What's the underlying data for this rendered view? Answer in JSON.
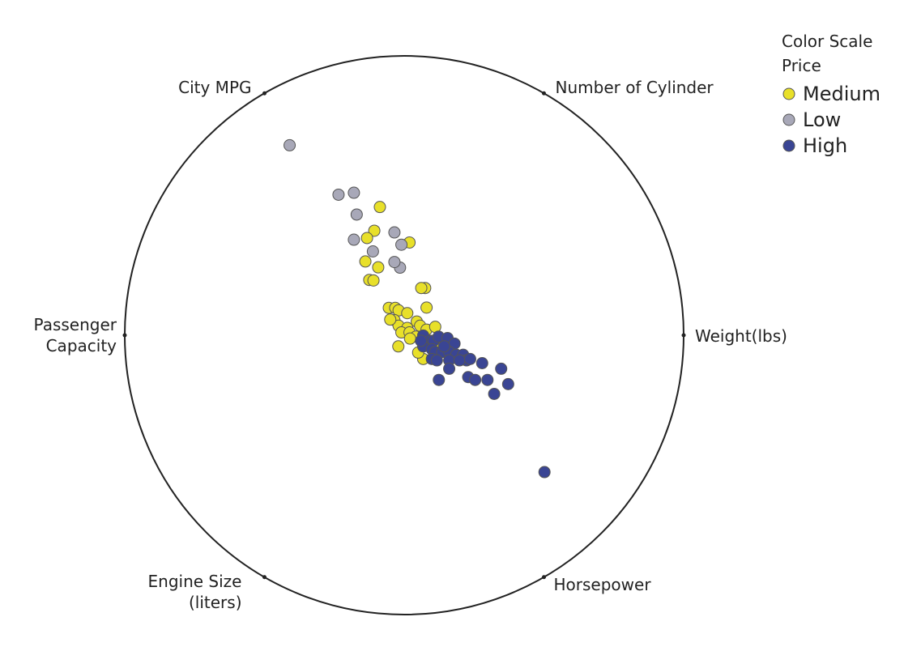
{
  "chart_data": {
    "type": "scatter",
    "subtype": "radviz",
    "title": "",
    "xlabel": "",
    "ylabel": "",
    "grid": false,
    "xlim": [
      -1,
      1
    ],
    "ylim": [
      -1,
      1
    ],
    "anchors": [
      {
        "name": "City MPG",
        "angle_deg": 120,
        "lines": [
          "City MPG"
        ]
      },
      {
        "name": "Number of Cylinder",
        "angle_deg": 60,
        "lines": [
          "Number of Cylinder"
        ]
      },
      {
        "name": "Weight(lbs)",
        "angle_deg": 0,
        "lines": [
          "Weight(lbs)"
        ]
      },
      {
        "name": "Horsepower",
        "angle_deg": -60,
        "lines": [
          "Horsepower"
        ]
      },
      {
        "name": "Engine Size (liters)",
        "angle_deg": -120,
        "lines": [
          "Engine Size",
          "(liters)"
        ]
      },
      {
        "name": "Passenger Capacity",
        "angle_deg": 180,
        "lines": [
          "Passenger",
          "Capacity"
        ]
      }
    ],
    "legend": {
      "title_lines": [
        "Color Scale",
        "Price"
      ],
      "position": "top-right",
      "entries": [
        {
          "label": "Medium",
          "color": "#e8e02a"
        },
        {
          "label": "Low",
          "color": "#a8a8b8"
        },
        {
          "label": "High",
          "color": "#3a4594"
        }
      ]
    },
    "series": [
      {
        "name": "Medium",
        "color": "#e8e02a",
        "points": [
          [
            -0.087,
            0.459
          ],
          [
            -0.107,
            0.374
          ],
          [
            0.019,
            0.332
          ],
          [
            -0.133,
            0.348
          ],
          [
            -0.139,
            0.264
          ],
          [
            -0.093,
            0.243
          ],
          [
            -0.125,
            0.198
          ],
          [
            -0.11,
            0.196
          ],
          [
            0.075,
            0.169
          ],
          [
            0.061,
            0.169
          ],
          [
            0.08,
            0.099
          ],
          [
            -0.055,
            0.098
          ],
          [
            -0.032,
            0.098
          ],
          [
            -0.02,
            0.089
          ],
          [
            0.011,
            0.079
          ],
          [
            -0.035,
            0.054
          ],
          [
            -0.02,
            0.034
          ],
          [
            0.011,
            0.026
          ],
          [
            0.045,
            0.049
          ],
          [
            -0.05,
            0.056
          ],
          [
            0.057,
            0.034
          ],
          [
            -0.01,
            0.01
          ],
          [
            0.019,
            0.01
          ],
          [
            0.068,
            -0.04
          ],
          [
            0.08,
            0.02
          ],
          [
            0.075,
            -0.02
          ],
          [
            0.042,
            -0.005
          ],
          [
            0.111,
            0.03
          ],
          [
            0.13,
            -0.03
          ],
          [
            -0.021,
            -0.04
          ],
          [
            0.068,
            -0.085
          ],
          [
            0.021,
            -0.012
          ],
          [
            0.05,
            -0.062
          ],
          [
            0.123,
            -0.033
          ]
        ]
      },
      {
        "name": "Low",
        "color": "#a8a8b8",
        "points": [
          [
            -0.41,
            0.68
          ],
          [
            -0.235,
            0.503
          ],
          [
            -0.18,
            0.51
          ],
          [
            -0.17,
            0.432
          ],
          [
            -0.18,
            0.342
          ],
          [
            -0.035,
            0.368
          ],
          [
            -0.01,
            0.324
          ],
          [
            -0.112,
            0.3
          ],
          [
            -0.015,
            0.242
          ],
          [
            -0.035,
            0.262
          ]
        ]
      },
      {
        "name": "High",
        "color": "#3a4594",
        "points": [
          [
            0.068,
            -0.001
          ],
          [
            0.093,
            -0.02
          ],
          [
            0.105,
            -0.02
          ],
          [
            0.123,
            -0.005
          ],
          [
            0.155,
            -0.01
          ],
          [
            0.18,
            -0.03
          ],
          [
            0.068,
            -0.04
          ],
          [
            0.099,
            -0.05
          ],
          [
            0.111,
            -0.06
          ],
          [
            0.136,
            -0.06
          ],
          [
            0.161,
            -0.06
          ],
          [
            0.186,
            -0.07
          ],
          [
            0.211,
            -0.07
          ],
          [
            0.223,
            -0.09
          ],
          [
            0.099,
            -0.085
          ],
          [
            0.117,
            -0.09
          ],
          [
            0.161,
            -0.09
          ],
          [
            0.198,
            -0.09
          ],
          [
            0.236,
            -0.085
          ],
          [
            0.161,
            -0.12
          ],
          [
            0.124,
            -0.16
          ],
          [
            0.279,
            -0.1
          ],
          [
            0.229,
            -0.15
          ],
          [
            0.254,
            -0.16
          ],
          [
            0.298,
            -0.16
          ],
          [
            0.347,
            -0.12
          ],
          [
            0.322,
            -0.21
          ],
          [
            0.372,
            -0.175
          ],
          [
            0.502,
            -0.49
          ],
          [
            0.06,
            -0.02
          ],
          [
            0.143,
            -0.04
          ]
        ]
      }
    ]
  }
}
